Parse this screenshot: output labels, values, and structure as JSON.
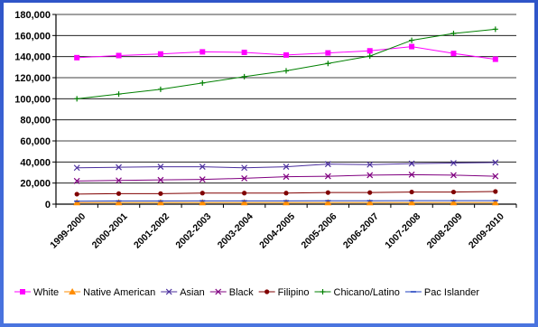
{
  "chart_data": {
    "type": "line",
    "title": "",
    "xlabel": "",
    "ylabel": "",
    "ylim": [
      0,
      180000
    ],
    "yticks": [
      0,
      20000,
      40000,
      60000,
      80000,
      100000,
      120000,
      140000,
      160000,
      180000
    ],
    "ytick_labels": [
      "0",
      "20,000",
      "40,000",
      "60,000",
      "80,000",
      "100,000",
      "120,000",
      "140,000",
      "160,000",
      "180,000"
    ],
    "categories": [
      "1999-2000",
      "2000-2001",
      "2001-2002",
      "2002-2003",
      "2003-2004",
      "2004-2005",
      "2005-2006",
      "2006-2007",
      "1007-2008",
      "2008-2009",
      "2009-2010"
    ],
    "grid": true,
    "legend_position": "bottom",
    "series": [
      {
        "name": "White",
        "color": "#ff00ff",
        "marker": "square",
        "values": [
          139000,
          141000,
          142500,
          144500,
          144000,
          141500,
          143500,
          145500,
          149500,
          143000,
          137500
        ]
      },
      {
        "name": "Native American",
        "color": "#ff8c00",
        "marker": "triangle",
        "values": [
          1500,
          1500,
          1500,
          1500,
          1500,
          1500,
          1500,
          1500,
          1500,
          1500,
          1500
        ]
      },
      {
        "name": "Asian",
        "color": "#4b2f9e",
        "marker": "x",
        "values": [
          34500,
          35000,
          35500,
          35500,
          34500,
          35500,
          38000,
          37500,
          38500,
          39000,
          39500
        ]
      },
      {
        "name": "Black",
        "color": "#800080",
        "marker": "x",
        "values": [
          22000,
          22500,
          23000,
          23500,
          24500,
          26000,
          26500,
          27500,
          28000,
          27500,
          26500
        ]
      },
      {
        "name": "Filipino",
        "color": "#800000",
        "marker": "circle",
        "values": [
          9500,
          10000,
          10000,
          10500,
          10500,
          10500,
          11000,
          11000,
          11500,
          11500,
          12000
        ]
      },
      {
        "name": "Chicano/Latino",
        "color": "#008000",
        "marker": "plus",
        "values": [
          100000,
          104500,
          109000,
          115000,
          121000,
          126500,
          133500,
          140500,
          155500,
          162000,
          166000
        ]
      },
      {
        "name": "Pac Islander",
        "color": "#1f3fbf",
        "marker": "dash",
        "values": [
          2800,
          3000,
          3000,
          3100,
          3100,
          3100,
          3200,
          3200,
          3300,
          3300,
          3300
        ]
      }
    ]
  }
}
